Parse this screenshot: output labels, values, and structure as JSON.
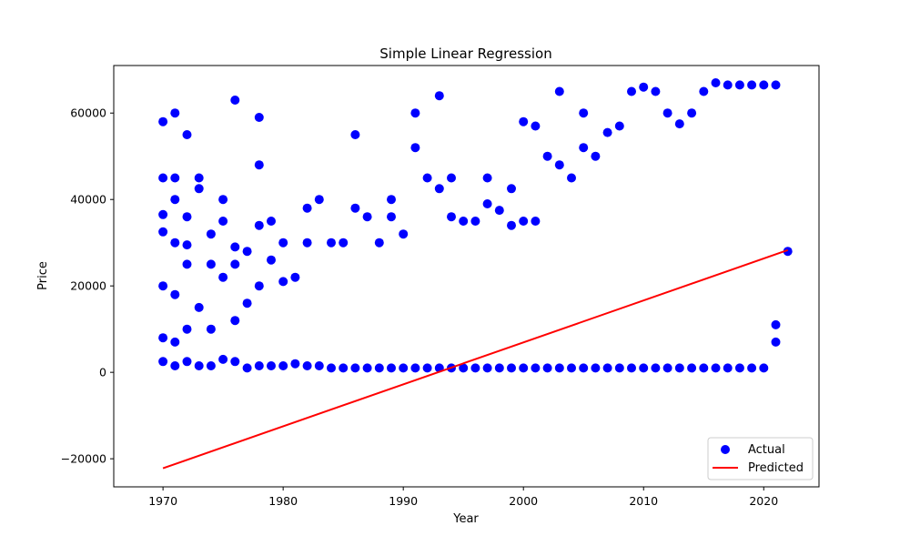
{
  "chart_data": {
    "type": "scatter",
    "title": "Simple Linear Regression",
    "xlabel": "Year",
    "ylabel": "Price",
    "xlim": [
      1965.9,
      2024.6
    ],
    "ylim": [
      -26500,
      71000
    ],
    "xticks": [
      1970,
      1980,
      1990,
      2000,
      2010,
      2020
    ],
    "xtick_labels": [
      "1970",
      "1980",
      "1990",
      "2000",
      "2010",
      "2020"
    ],
    "yticks": [
      -20000,
      0,
      20000,
      40000,
      60000
    ],
    "ytick_labels": [
      "−20000",
      "0",
      "20000",
      "40000",
      "60000"
    ],
    "grid": false,
    "legend_position": "lower-right",
    "colors": {
      "actual": "#0000ff",
      "predicted": "#ff0000"
    },
    "series": [
      {
        "name": "Actual",
        "kind": "scatter",
        "x": [
          1970,
          1970,
          1970,
          1970,
          1970,
          1970,
          1970,
          1971,
          1971,
          1971,
          1971,
          1971,
          1971,
          1971,
          1972,
          1972,
          1972,
          1972,
          1972,
          1972,
          1973,
          1973,
          1973,
          1973,
          1974,
          1974,
          1974,
          1974,
          1975,
          1975,
          1975,
          1975,
          1976,
          1976,
          1976,
          1976,
          1976,
          1977,
          1977,
          1977,
          1978,
          1978,
          1978,
          1978,
          1978,
          1979,
          1979,
          1979,
          1980,
          1980,
          1980,
          1981,
          1981,
          1982,
          1982,
          1982,
          1983,
          1983,
          1984,
          1984,
          1985,
          1985,
          1986,
          1986,
          1986,
          1987,
          1987,
          1988,
          1988,
          1989,
          1989,
          1989,
          1990,
          1990,
          1991,
          1991,
          1991,
          1992,
          1992,
          1993,
          1993,
          1993,
          1994,
          1994,
          1994,
          1995,
          1995,
          1996,
          1996,
          1997,
          1997,
          1997,
          1998,
          1998,
          1999,
          1999,
          1999,
          2000,
          2000,
          2000,
          2001,
          2001,
          2001,
          2002,
          2002,
          2003,
          2003,
          2003,
          2004,
          2004,
          2005,
          2005,
          2005,
          2006,
          2006,
          2007,
          2007,
          2008,
          2008,
          2009,
          2009,
          2010,
          2010,
          2011,
          2011,
          2012,
          2012,
          2013,
          2013,
          2014,
          2014,
          2015,
          2015,
          2016,
          2016,
          2017,
          2017,
          2018,
          2018,
          2019,
          2019,
          2020,
          2020,
          2021,
          2021,
          2021,
          2022
        ],
        "y": [
          58000,
          45000,
          36500,
          32500,
          20000,
          8000,
          2500,
          45000,
          40000,
          30000,
          18000,
          7000,
          1500,
          60000,
          55000,
          36000,
          25000,
          10000,
          2500,
          29500,
          45000,
          15000,
          1500,
          42500,
          32000,
          25000,
          10000,
          1500,
          40000,
          35000,
          22000,
          3000,
          63000,
          29000,
          25000,
          12000,
          2500,
          28000,
          16000,
          1000,
          59000,
          48000,
          34000,
          20000,
          1500,
          35000,
          26000,
          1500,
          30000,
          21000,
          1500,
          22000,
          2000,
          38000,
          30000,
          1500,
          40000,
          1500,
          30000,
          1000,
          30000,
          1000,
          55000,
          38000,
          1000,
          36000,
          1000,
          30000,
          1000,
          40000,
          36000,
          1000,
          32000,
          1000,
          60000,
          52000,
          1000,
          45000,
          1000,
          64000,
          42500,
          1000,
          45000,
          36000,
          1000,
          35000,
          1000,
          35000,
          1000,
          45000,
          39000,
          1000,
          37500,
          1000,
          42500,
          34000,
          1000,
          58000,
          35000,
          1000,
          57000,
          35000,
          1000,
          50000,
          1000,
          65000,
          48000,
          1000,
          45000,
          1000,
          60000,
          52000,
          1000,
          50000,
          1000,
          55500,
          1000,
          57000,
          1000,
          65000,
          1000,
          66000,
          1000,
          65000,
          1000,
          60000,
          1000,
          57500,
          1000,
          60000,
          1000,
          65000,
          1000,
          67000,
          1000,
          66500,
          1000,
          66500,
          1000,
          66500,
          1000,
          66500,
          1000,
          66500,
          11000,
          7000,
          28000
        ]
      },
      {
        "name": "Predicted",
        "kind": "line",
        "x": [
          1970,
          2022
        ],
        "y": [
          -22200,
          28300
        ]
      }
    ]
  }
}
